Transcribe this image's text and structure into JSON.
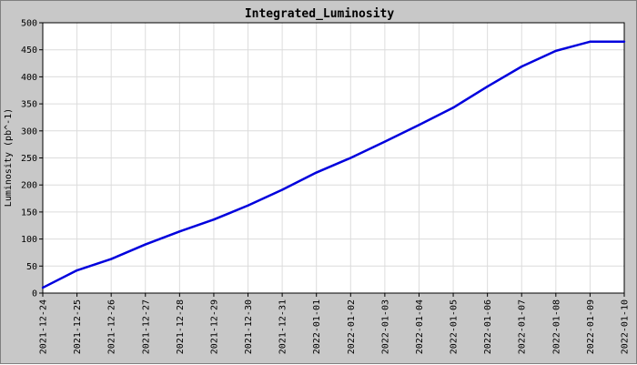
{
  "chart_data": {
    "type": "line",
    "title": "Integrated_Luminosity",
    "xlabel": "",
    "ylabel": "Luminosity (pb^-1)",
    "ylim": [
      0,
      500
    ],
    "yticks": [
      0,
      50,
      100,
      150,
      200,
      250,
      300,
      350,
      400,
      450,
      500
    ],
    "grid": true,
    "legend": "none",
    "line_color": "#0000dd",
    "categories": [
      "2021-12-24",
      "2021-12-25",
      "2021-12-26",
      "2021-12-27",
      "2021-12-28",
      "2021-12-29",
      "2021-12-30",
      "2021-12-31",
      "2022-01-01",
      "2022-01-02",
      "2022-01-03",
      "2022-01-04",
      "2022-01-05",
      "2022-01-06",
      "2022-01-07",
      "2022-01-08",
      "2022-01-09",
      "2022-01-10"
    ],
    "values": [
      10,
      42,
      63,
      90,
      114,
      136,
      162,
      191,
      223,
      250,
      280,
      311,
      343,
      382,
      419,
      448,
      465,
      465
    ]
  }
}
